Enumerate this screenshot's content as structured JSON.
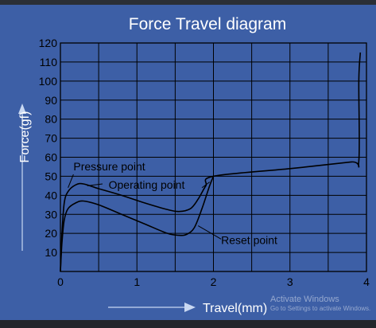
{
  "chart_data": {
    "type": "line",
    "title": "Force Travel diagram",
    "xlabel": "Travel(mm)",
    "ylabel": "Force(gf)",
    "xlim": [
      0,
      4
    ],
    "ylim": [
      0,
      120
    ],
    "xticks": [
      0,
      1,
      2,
      3,
      4
    ],
    "xtick_labels": [
      "0",
      "1",
      "2",
      "3",
      "4"
    ],
    "yticks": [
      10,
      20,
      30,
      40,
      50,
      60,
      70,
      80,
      90,
      100,
      110,
      120
    ],
    "ytick_labels": [
      "10",
      "20",
      "30",
      "40",
      "50",
      "60",
      "70",
      "80",
      "90",
      "100",
      "110",
      "120"
    ],
    "grid": true,
    "series": [
      {
        "x": [
          0,
          0.02,
          0.05,
          0.1,
          0.2,
          0.3,
          0.5,
          0.8,
          1.1,
          1.4,
          1.55,
          1.7,
          1.8,
          1.9,
          2.0,
          3.0,
          3.8,
          3.9,
          3.9,
          3.92
        ],
        "y": [
          0,
          20,
          36,
          42,
          45.5,
          46,
          43.5,
          40,
          36,
          32.5,
          31.5,
          33,
          38,
          45,
          50,
          54,
          57.5,
          58,
          100,
          115
        ]
      },
      {
        "x": [
          0,
          0.02,
          0.05,
          0.1,
          0.2,
          0.3,
          0.5,
          0.8,
          1.1,
          1.4,
          1.55,
          1.65,
          1.75,
          1.85,
          1.95,
          2.0
        ],
        "y": [
          0,
          15,
          27,
          33,
          36,
          37,
          35,
          30,
          25,
          20,
          19,
          19.5,
          23,
          33,
          45,
          50
        ]
      }
    ],
    "annotations": [
      {
        "text": "Pressure point",
        "x": 0.17,
        "y": 53
      },
      {
        "text": "Operating point",
        "x": 0.63,
        "y": 43.5
      },
      {
        "text": "Reset point",
        "x": 2.1,
        "y": 14.5
      }
    ],
    "colors": {
      "background": "#3d5fa6",
      "grid": "#000000",
      "curve": "#000000",
      "title": "#ffffff",
      "ticks": "#000000",
      "axis_label": "#ffffff"
    }
  },
  "overlay": {
    "activation_title": "Activate Windows",
    "activation_subtitle": "Go to Settings to activate Windows."
  }
}
